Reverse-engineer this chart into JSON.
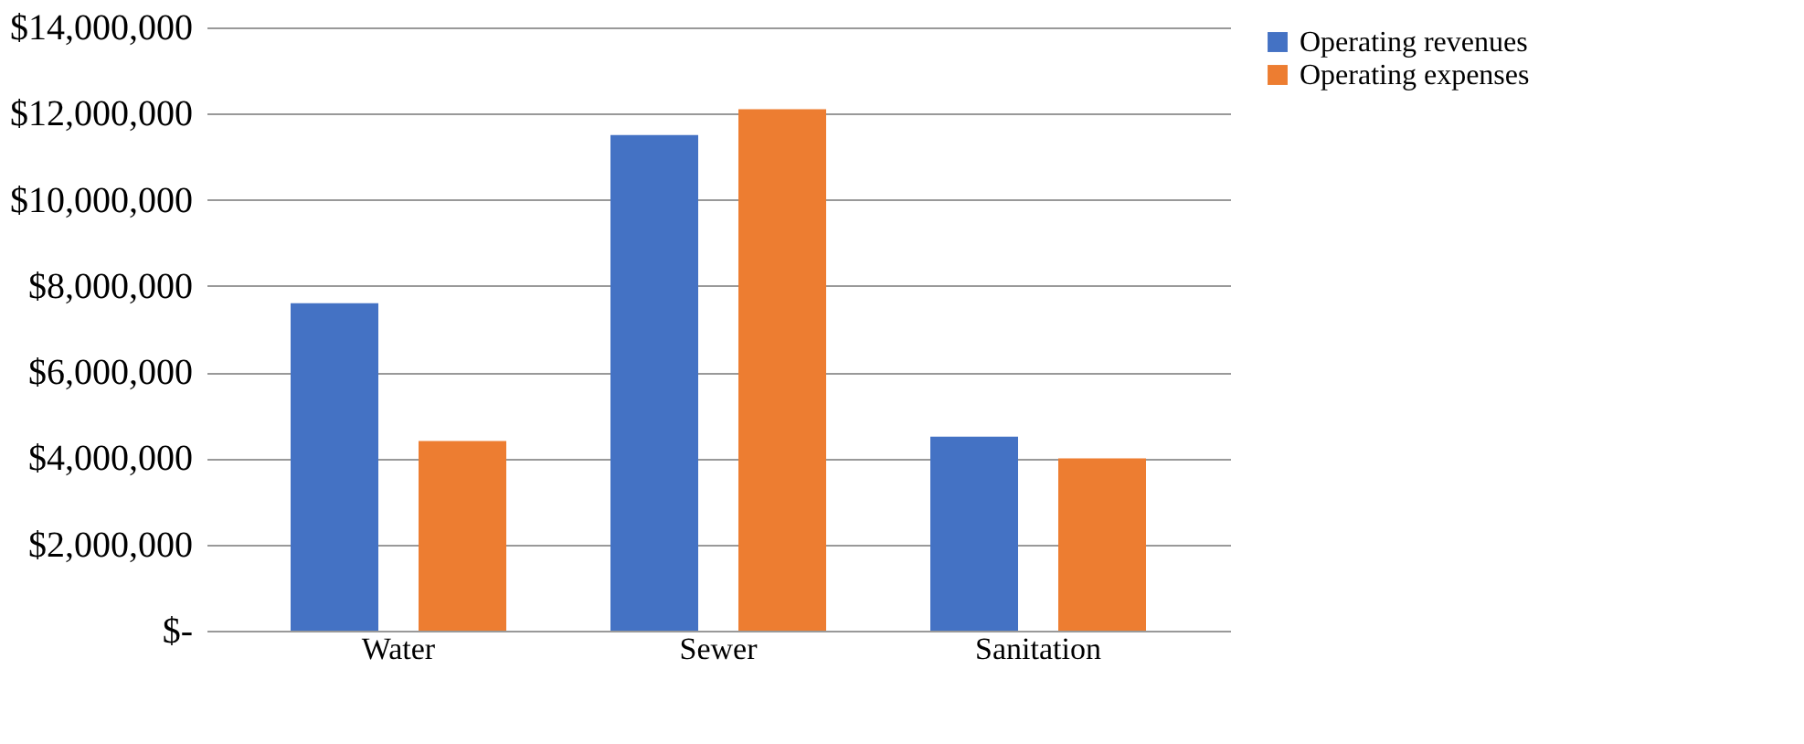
{
  "chart_data": {
    "type": "bar",
    "categories": [
      "Water",
      "Sewer",
      "Sanitation"
    ],
    "series": [
      {
        "name": "Operating revenues",
        "color": "#4472c4",
        "values": [
          7600000,
          11500000,
          4500000
        ]
      },
      {
        "name": "Operating expenses",
        "color": "#ed7d31",
        "values": [
          4400000,
          12100000,
          4000000
        ]
      }
    ],
    "ylim": [
      0,
      14000000
    ],
    "yticks": [
      {
        "value": 0,
        "label": "$-"
      },
      {
        "value": 2000000,
        "label": "$2,000,000"
      },
      {
        "value": 4000000,
        "label": "$4,000,000"
      },
      {
        "value": 6000000,
        "label": "$6,000,000"
      },
      {
        "value": 8000000,
        "label": "$8,000,000"
      },
      {
        "value": 10000000,
        "label": "$10,000,000"
      },
      {
        "value": 12000000,
        "label": "$12,000,000"
      },
      {
        "value": 14000000,
        "label": "$14,000,000"
      }
    ],
    "grid": "y",
    "legend": "right"
  }
}
